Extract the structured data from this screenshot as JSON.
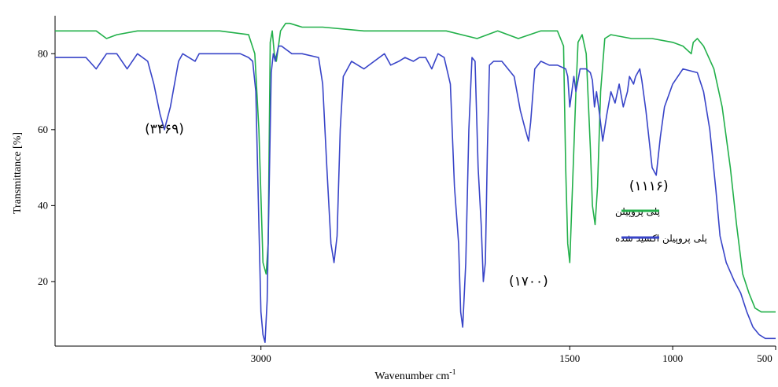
{
  "chart_data": {
    "type": "line",
    "title": "",
    "xlabel": "Wavenumber cm",
    "xlabel_sup": "-1",
    "ylabel": "Transmittance [%]",
    "xlim": [
      4000,
      500
    ],
    "ylim": [
      3,
      90
    ],
    "x_ticks": [
      3000,
      1500,
      1000,
      500
    ],
    "x_tick_labels": [
      "3000",
      "1500",
      "1000",
      "500"
    ],
    "y_ticks": [
      20,
      40,
      60,
      80
    ],
    "y_tick_labels": [
      "20",
      "40",
      "60",
      "80"
    ],
    "grid": false,
    "legend_placement": "right-center",
    "annotations": [
      {
        "text": "(۳۴۶۹)",
        "x": 3469,
        "y": 59
      },
      {
        "text": "(۱۷۰۰)",
        "x": 1700,
        "y": 19
      },
      {
        "text": "(۱۱۱۶)",
        "x": 1116,
        "y": 44
      }
    ],
    "series": [
      {
        "name": "پلی پروپیلن",
        "color": "#22b04a",
        "points": [
          [
            4000,
            86
          ],
          [
            3800,
            86
          ],
          [
            3750,
            84
          ],
          [
            3700,
            85
          ],
          [
            3600,
            86
          ],
          [
            3400,
            86
          ],
          [
            3200,
            86
          ],
          [
            3060,
            85
          ],
          [
            3030,
            80
          ],
          [
            3010,
            60
          ],
          [
            2990,
            25
          ],
          [
            2975,
            22
          ],
          [
            2965,
            30
          ],
          [
            2955,
            83
          ],
          [
            2945,
            86
          ],
          [
            2935,
            80
          ],
          [
            2925,
            78
          ],
          [
            2915,
            82
          ],
          [
            2905,
            86
          ],
          [
            2880,
            88
          ],
          [
            2860,
            88
          ],
          [
            2800,
            87
          ],
          [
            2700,
            87
          ],
          [
            2500,
            86
          ],
          [
            2300,
            86
          ],
          [
            2100,
            86
          ],
          [
            1950,
            84
          ],
          [
            1850,
            86
          ],
          [
            1750,
            84
          ],
          [
            1640,
            86
          ],
          [
            1560,
            86
          ],
          [
            1530,
            82
          ],
          [
            1520,
            50
          ],
          [
            1510,
            30
          ],
          [
            1500,
            25
          ],
          [
            1490,
            40
          ],
          [
            1470,
            70
          ],
          [
            1460,
            83
          ],
          [
            1440,
            85
          ],
          [
            1420,
            80
          ],
          [
            1400,
            55
          ],
          [
            1390,
            40
          ],
          [
            1377,
            35
          ],
          [
            1365,
            45
          ],
          [
            1350,
            70
          ],
          [
            1330,
            84
          ],
          [
            1300,
            85
          ],
          [
            1200,
            84
          ],
          [
            1100,
            84
          ],
          [
            1000,
            83
          ],
          [
            950,
            82
          ],
          [
            910,
            80
          ],
          [
            900,
            83
          ],
          [
            880,
            84
          ],
          [
            850,
            82
          ],
          [
            800,
            76
          ],
          [
            760,
            66
          ],
          [
            720,
            50
          ],
          [
            690,
            35
          ],
          [
            660,
            22
          ],
          [
            630,
            17
          ],
          [
            600,
            13
          ],
          [
            570,
            12
          ],
          [
            540,
            12
          ],
          [
            520,
            12
          ],
          [
            500,
            12
          ]
        ]
      },
      {
        "name": "پلی پروپیلن اکسید شده",
        "color": "#3844c8",
        "points": [
          [
            4000,
            79
          ],
          [
            3850,
            79
          ],
          [
            3800,
            76
          ],
          [
            3750,
            80
          ],
          [
            3700,
            80
          ],
          [
            3650,
            76
          ],
          [
            3600,
            80
          ],
          [
            3550,
            78
          ],
          [
            3520,
            72
          ],
          [
            3490,
            64
          ],
          [
            3469,
            60
          ],
          [
            3440,
            66
          ],
          [
            3400,
            78
          ],
          [
            3380,
            80
          ],
          [
            3320,
            78
          ],
          [
            3300,
            80
          ],
          [
            3200,
            80
          ],
          [
            3100,
            80
          ],
          [
            3060,
            79
          ],
          [
            3040,
            78
          ],
          [
            3025,
            70
          ],
          [
            3010,
            35
          ],
          [
            3000,
            12
          ],
          [
            2990,
            6
          ],
          [
            2980,
            4
          ],
          [
            2970,
            15
          ],
          [
            2960,
            45
          ],
          [
            2950,
            75
          ],
          [
            2940,
            80
          ],
          [
            2930,
            78
          ],
          [
            2915,
            82
          ],
          [
            2900,
            82
          ],
          [
            2850,
            80
          ],
          [
            2800,
            80
          ],
          [
            2720,
            79
          ],
          [
            2700,
            72
          ],
          [
            2680,
            50
          ],
          [
            2660,
            30
          ],
          [
            2645,
            25
          ],
          [
            2630,
            32
          ],
          [
            2615,
            60
          ],
          [
            2600,
            74
          ],
          [
            2560,
            78
          ],
          [
            2500,
            76
          ],
          [
            2450,
            78
          ],
          [
            2400,
            80
          ],
          [
            2370,
            77
          ],
          [
            2330,
            78
          ],
          [
            2300,
            79
          ],
          [
            2260,
            78
          ],
          [
            2230,
            79
          ],
          [
            2200,
            79
          ],
          [
            2170,
            76
          ],
          [
            2140,
            80
          ],
          [
            2110,
            79
          ],
          [
            2080,
            72
          ],
          [
            2060,
            45
          ],
          [
            2040,
            30
          ],
          [
            2030,
            12
          ],
          [
            2020,
            8
          ],
          [
            2005,
            25
          ],
          [
            1990,
            60
          ],
          [
            1975,
            79
          ],
          [
            1960,
            78
          ],
          [
            1945,
            50
          ],
          [
            1930,
            35
          ],
          [
            1920,
            20
          ],
          [
            1910,
            25
          ],
          [
            1900,
            55
          ],
          [
            1890,
            77
          ],
          [
            1870,
            78
          ],
          [
            1830,
            78
          ],
          [
            1800,
            76
          ],
          [
            1770,
            74
          ],
          [
            1740,
            65
          ],
          [
            1716,
            60
          ],
          [
            1700,
            57
          ],
          [
            1690,
            62
          ],
          [
            1670,
            76
          ],
          [
            1640,
            78
          ],
          [
            1600,
            77
          ],
          [
            1560,
            77
          ],
          [
            1520,
            76
          ],
          [
            1510,
            74
          ],
          [
            1500,
            66
          ],
          [
            1480,
            74
          ],
          [
            1470,
            70
          ],
          [
            1450,
            76
          ],
          [
            1420,
            76
          ],
          [
            1400,
            75
          ],
          [
            1390,
            73
          ],
          [
            1380,
            66
          ],
          [
            1370,
            70
          ],
          [
            1355,
            64
          ],
          [
            1340,
            57
          ],
          [
            1320,
            64
          ],
          [
            1300,
            70
          ],
          [
            1280,
            67
          ],
          [
            1260,
            72
          ],
          [
            1240,
            66
          ],
          [
            1220,
            70
          ],
          [
            1210,
            74
          ],
          [
            1200,
            73
          ],
          [
            1190,
            72
          ],
          [
            1180,
            74
          ],
          [
            1160,
            76
          ],
          [
            1150,
            73
          ],
          [
            1130,
            65
          ],
          [
            1100,
            50
          ],
          [
            1080,
            48
          ],
          [
            1060,
            58
          ],
          [
            1040,
            66
          ],
          [
            1000,
            72
          ],
          [
            950,
            76
          ],
          [
            880,
            75
          ],
          [
            850,
            70
          ],
          [
            820,
            60
          ],
          [
            790,
            44
          ],
          [
            770,
            32
          ],
          [
            740,
            25
          ],
          [
            700,
            20
          ],
          [
            670,
            17
          ],
          [
            640,
            12
          ],
          [
            610,
            8
          ],
          [
            580,
            6
          ],
          [
            550,
            5
          ],
          [
            520,
            5
          ],
          [
            500,
            5
          ]
        ]
      }
    ]
  }
}
